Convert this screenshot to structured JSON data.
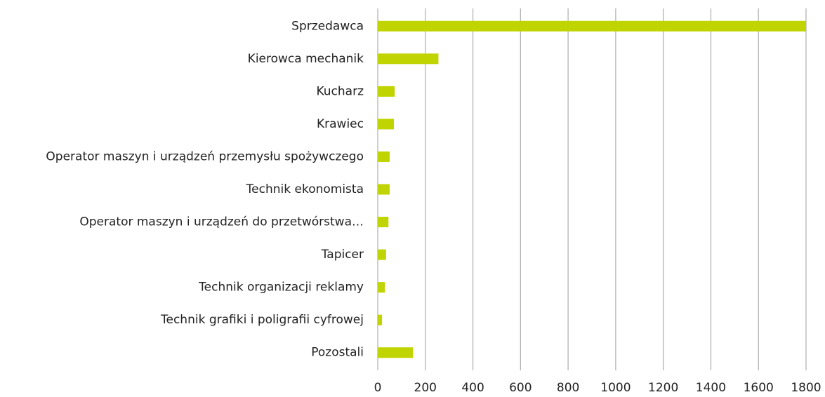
{
  "chart_data": {
    "type": "barh",
    "categories": [
      "Sprzedawca",
      "Kierowca mechanik",
      "Kucharz",
      "Krawiec",
      "Operator maszyn i urządzeń przemysłu spożywczego",
      "Technik ekonomista",
      "Operator maszyn i urządzeń do przetwórstwa…",
      "Tapicer",
      "Technik organizacji reklamy",
      "Technik grafiki i poligrafii cyfrowej",
      "Pozostali"
    ],
    "values": [
      1800,
      255,
      71,
      68,
      50,
      50,
      45,
      35,
      30,
      18,
      148
    ],
    "color": "#bfd400",
    "xlim": [
      0,
      1800
    ],
    "xticks": [
      0,
      200,
      400,
      600,
      800,
      1000,
      1200,
      1400,
      1600,
      1800
    ],
    "grid": true
  }
}
